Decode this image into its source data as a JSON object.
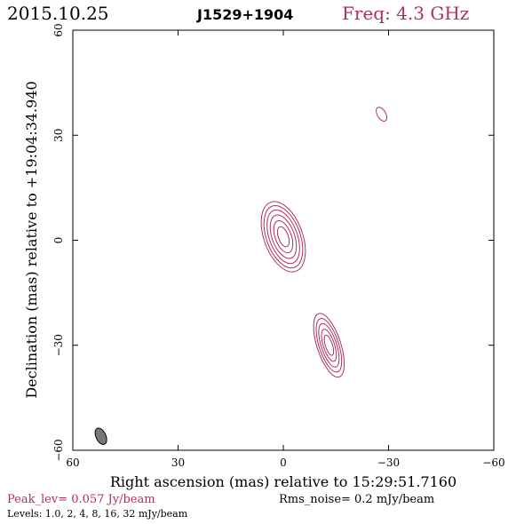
{
  "header": {
    "date": "2015.10.25",
    "source": "J1529+1904",
    "freq": "Freq: 4.3 GHz"
  },
  "footer": {
    "peak": "Peak_lev=  0.057 Jy/beam",
    "rms": "Rms_noise=   0.2 mJy/beam",
    "levels": "Levels: 1.0,    2,    4,    8,   16,   32 mJy/beam"
  },
  "colors": {
    "contour": "#b0305a",
    "frame": "#000000",
    "beam": "#777777"
  },
  "chart_data": {
    "type": "contour",
    "xlabel": "Right ascension (mas) relative to 15:29:51.7160",
    "ylabel": "Declination (mas) relative to +19:04:34.940",
    "xlim": [
      60,
      -60
    ],
    "ylim": [
      -60,
      60
    ],
    "xticks": [
      "60",
      "30",
      "0",
      "−30",
      "−60"
    ],
    "yticks": [
      "−60",
      "−30",
      "0",
      "30",
      "60"
    ],
    "xtick_values": [
      60,
      30,
      0,
      -30,
      -60
    ],
    "ytick_values": [
      -60,
      -30,
      0,
      30,
      60
    ],
    "levels_mJy": [
      1.0,
      2,
      4,
      8,
      16,
      32
    ],
    "peak_Jy_per_beam": 0.057,
    "rms_mJy_per_beam": 0.2,
    "components": [
      {
        "x": 0,
        "y": 1,
        "contours": [
          {
            "a": 5.5,
            "b": 10.5,
            "pa": 20
          },
          {
            "a": 4.8,
            "b": 9.3,
            "pa": 20
          },
          {
            "a": 4.0,
            "b": 8.0,
            "pa": 20
          },
          {
            "a": 3.2,
            "b": 6.5,
            "pa": 20
          },
          {
            "a": 2.3,
            "b": 4.8,
            "pa": 20
          },
          {
            "a": 1.4,
            "b": 3.0,
            "pa": 20
          }
        ]
      },
      {
        "x": -13,
        "y": -30,
        "contours": [
          {
            "a": 3.4,
            "b": 9.5,
            "pa": 18
          },
          {
            "a": 2.8,
            "b": 8.0,
            "pa": 18
          },
          {
            "a": 2.2,
            "b": 6.5,
            "pa": 18
          },
          {
            "a": 1.6,
            "b": 4.8,
            "pa": 18
          },
          {
            "a": 1.0,
            "b": 3.0,
            "pa": 18
          }
        ]
      },
      {
        "x": -28,
        "y": 36,
        "contours": [
          {
            "a": 1.2,
            "b": 2.2,
            "pa": 30
          }
        ]
      }
    ],
    "beam": {
      "x": 52,
      "y": -56,
      "a": 1.4,
      "b": 2.5,
      "pa": 25
    }
  }
}
